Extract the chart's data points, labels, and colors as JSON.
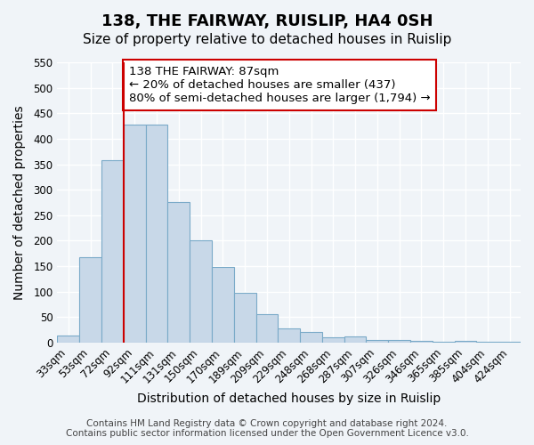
{
  "title": "138, THE FAIRWAY, RUISLIP, HA4 0SH",
  "subtitle": "Size of property relative to detached houses in Ruislip",
  "xlabel": "Distribution of detached houses by size in Ruislip",
  "ylabel": "Number of detached properties",
  "categories": [
    "33sqm",
    "53sqm",
    "72sqm",
    "92sqm",
    "111sqm",
    "131sqm",
    "150sqm",
    "170sqm",
    "189sqm",
    "209sqm",
    "229sqm",
    "248sqm",
    "268sqm",
    "287sqm",
    "307sqm",
    "326sqm",
    "346sqm",
    "365sqm",
    "385sqm",
    "404sqm",
    "424sqm"
  ],
  "values": [
    13,
    167,
    358,
    428,
    428,
    276,
    200,
    149,
    97,
    55,
    28,
    20,
    10,
    12,
    5,
    5,
    4,
    1,
    3,
    1,
    1
  ],
  "bar_color": "#c8d8e8",
  "bar_edge_color": "#7aaac8",
  "vline_x_index": 3,
  "vline_color": "#cc0000",
  "annotation_title": "138 THE FAIRWAY: 87sqm",
  "annotation_line1": "← 20% of detached houses are smaller (437)",
  "annotation_line2": "80% of semi-detached houses are larger (1,794) →",
  "annotation_box_color": "#ffffff",
  "annotation_box_edge": "#cc0000",
  "ylim": [
    0,
    550
  ],
  "yticks": [
    0,
    50,
    100,
    150,
    200,
    250,
    300,
    350,
    400,
    450,
    500,
    550
  ],
  "footer1": "Contains HM Land Registry data © Crown copyright and database right 2024.",
  "footer2": "Contains public sector information licensed under the Open Government Licence v3.0.",
  "bg_color": "#f0f4f8",
  "plot_bg_color": "#f0f4f8",
  "grid_color": "#ffffff",
  "title_fontsize": 13,
  "subtitle_fontsize": 11,
  "axis_label_fontsize": 10,
  "tick_fontsize": 8.5,
  "annotation_fontsize": 9.5,
  "footer_fontsize": 7.5
}
